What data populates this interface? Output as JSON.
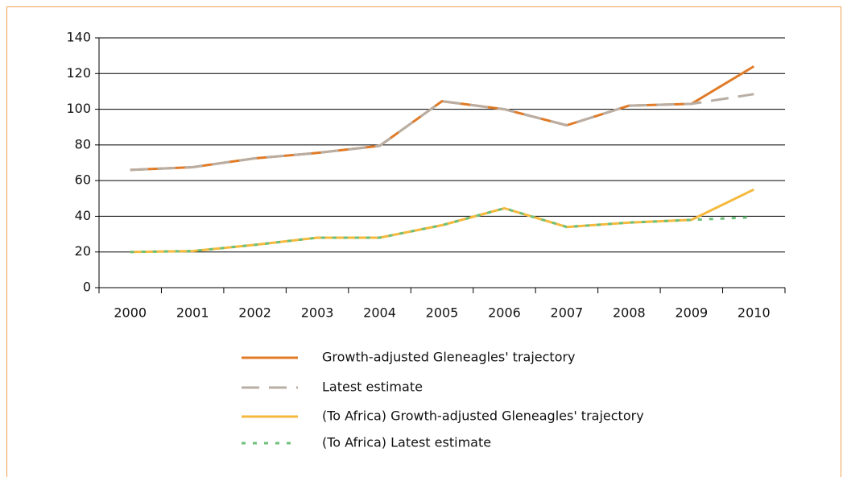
{
  "chart_data": {
    "type": "line",
    "categories": [
      "2000",
      "2001",
      "2002",
      "2003",
      "2004",
      "2005",
      "2006",
      "2007",
      "2008",
      "2009",
      "2010"
    ],
    "series": [
      {
        "name": "Growth-adjusted Gleneagles' trajectory",
        "color": "#e07b28",
        "style": "solid",
        "values": [
          66,
          67.5,
          72.5,
          75.5,
          79.5,
          104.5,
          100,
          91,
          102,
          103,
          124
        ]
      },
      {
        "name": "Latest estimate",
        "color": "#b8aea4",
        "style": "dashed",
        "values": [
          66,
          67.5,
          72.5,
          75.5,
          79.5,
          104.5,
          100,
          91,
          102,
          103,
          108.5
        ]
      },
      {
        "name": "(To Africa) Growth-adjusted Gleneagles' trajectory",
        "color": "#f5b93e",
        "style": "solid",
        "values": [
          20,
          20.5,
          24,
          28,
          28,
          35,
          44.5,
          34,
          36.5,
          38,
          55
        ]
      },
      {
        "name": "(To Africa) Latest estimate",
        "color": "#6cc07a",
        "style": "dotted",
        "values": [
          20,
          20.5,
          24,
          28,
          28,
          35,
          44.5,
          34,
          36.5,
          38,
          39.5
        ]
      }
    ],
    "ylim": [
      0,
      140
    ],
    "yticks": [
      0,
      20,
      40,
      60,
      80,
      100,
      120,
      140
    ],
    "grid": true,
    "legend": "bottom"
  }
}
